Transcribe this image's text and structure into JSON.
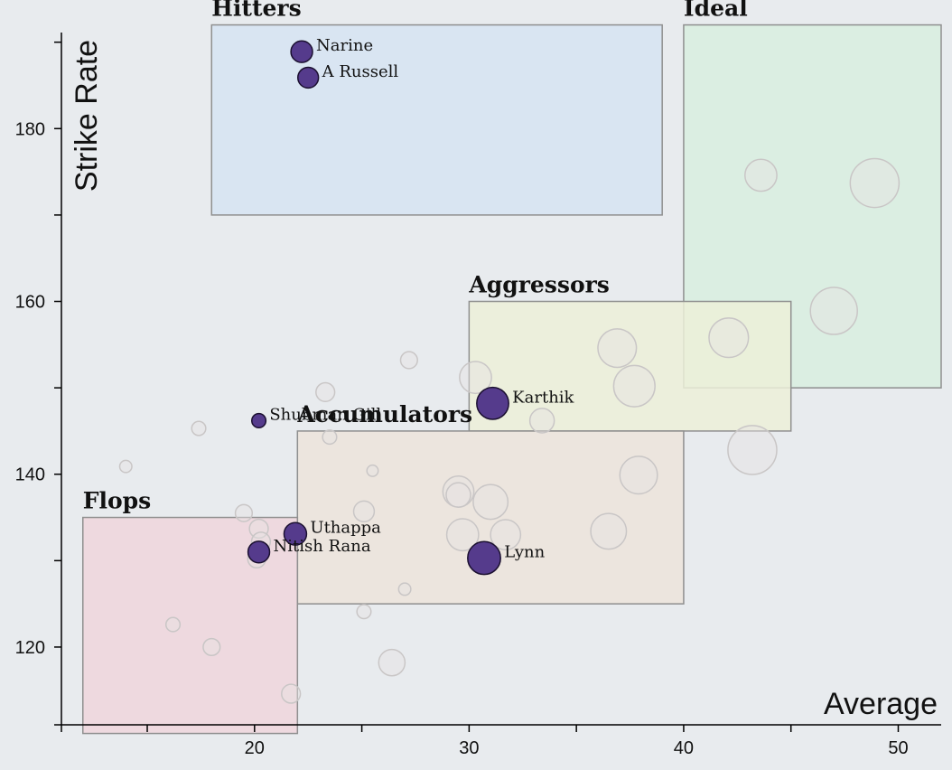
{
  "chart_data": {
    "type": "scatter",
    "xlabel": "Average",
    "ylabel": "Strike Rate",
    "xlim": [
      11,
      52
    ],
    "ylim": [
      111,
      193
    ],
    "x_ticks": [
      {
        "value": 15,
        "label": ""
      },
      {
        "value": 20,
        "label": "20"
      },
      {
        "value": 25,
        "label": ""
      },
      {
        "value": 30,
        "label": "30"
      },
      {
        "value": 35,
        "label": ""
      },
      {
        "value": 40,
        "label": "40"
      },
      {
        "value": 45,
        "label": ""
      },
      {
        "value": 50,
        "label": "50"
      }
    ],
    "y_ticks": [
      {
        "value": 120,
        "label": "120"
      },
      {
        "value": 130,
        "label": ""
      },
      {
        "value": 140,
        "label": "140"
      },
      {
        "value": 150,
        "label": ""
      },
      {
        "value": 160,
        "label": "160"
      },
      {
        "value": 170,
        "label": ""
      },
      {
        "value": 180,
        "label": "180"
      },
      {
        "value": 190,
        "label": ""
      }
    ],
    "zones": [
      {
        "label": "Hitters",
        "x0": 18,
        "x1": 39,
        "y0": 170,
        "y1": 192,
        "color": "#d6e4f2"
      },
      {
        "label": "Ideal",
        "x0": 40,
        "x1": 52,
        "y0": 150,
        "y1": 192,
        "color": "#d8efdf"
      },
      {
        "label": "Aggressors",
        "x0": 30,
        "x1": 45,
        "y0": 145,
        "y1": 160,
        "color": "#ecf0d8"
      },
      {
        "label": "Accumulators",
        "x0": 22,
        "x1": 40,
        "y0": 125,
        "y1": 145,
        "color": "#ece4db"
      },
      {
        "label": "Flops",
        "x0": 12,
        "x1": 22,
        "y0": 110,
        "y1": 135,
        "color": "#efd6dc"
      }
    ],
    "highlighted": [
      {
        "name": "Narine",
        "x": 22.2,
        "y": 188.9,
        "size": 2.3
      },
      {
        "name": "A Russell",
        "x": 22.5,
        "y": 185.9,
        "size": 2.2
      },
      {
        "name": "Karthik",
        "x": 31.1,
        "y": 148.2,
        "size": 3.4
      },
      {
        "name": "Shubman Gill",
        "x": 20.2,
        "y": 146.2,
        "size": 1.5
      },
      {
        "name": "Uthappa",
        "x": 21.9,
        "y": 133.1,
        "size": 2.4
      },
      {
        "name": "Nitish Rana",
        "x": 20.2,
        "y": 131.0,
        "size": 2.3
      },
      {
        "name": "Lynn",
        "x": 30.7,
        "y": 130.3,
        "size": 3.5
      }
    ],
    "others": [
      {
        "x": 43.6,
        "y": 174.6,
        "size": 3.4
      },
      {
        "x": 48.9,
        "y": 173.7,
        "size": 5.2
      },
      {
        "x": 47.0,
        "y": 158.9,
        "size": 5.0
      },
      {
        "x": 42.1,
        "y": 155.8,
        "size": 4.2
      },
      {
        "x": 36.9,
        "y": 154.6,
        "size": 4.1
      },
      {
        "x": 37.7,
        "y": 150.2,
        "size": 4.4
      },
      {
        "x": 43.2,
        "y": 142.8,
        "size": 5.2
      },
      {
        "x": 33.4,
        "y": 146.2,
        "size": 2.6
      },
      {
        "x": 30.3,
        "y": 151.2,
        "size": 3.4
      },
      {
        "x": 27.2,
        "y": 153.2,
        "size": 1.8
      },
      {
        "x": 23.3,
        "y": 149.5,
        "size": 2.0
      },
      {
        "x": 23.5,
        "y": 144.3,
        "size": 1.5
      },
      {
        "x": 17.4,
        "y": 145.3,
        "size": 1.5
      },
      {
        "x": 14.0,
        "y": 140.9,
        "size": 1.3
      },
      {
        "x": 25.5,
        "y": 140.4,
        "size": 1.2
      },
      {
        "x": 29.5,
        "y": 138.0,
        "size": 3.3
      },
      {
        "x": 29.5,
        "y": 137.6,
        "size": 2.6
      },
      {
        "x": 31.0,
        "y": 136.8,
        "size": 3.7
      },
      {
        "x": 37.9,
        "y": 139.9,
        "size": 4.0
      },
      {
        "x": 36.5,
        "y": 133.4,
        "size": 3.8
      },
      {
        "x": 31.7,
        "y": 133.0,
        "size": 3.2
      },
      {
        "x": 29.7,
        "y": 133.0,
        "size": 3.4
      },
      {
        "x": 25.1,
        "y": 135.7,
        "size": 2.2
      },
      {
        "x": 19.5,
        "y": 135.5,
        "size": 1.8
      },
      {
        "x": 20.2,
        "y": 133.7,
        "size": 2.0
      },
      {
        "x": 20.3,
        "y": 132.2,
        "size": 2.0
      },
      {
        "x": 20.1,
        "y": 130.2,
        "size": 1.9
      },
      {
        "x": 27.0,
        "y": 126.7,
        "size": 1.3
      },
      {
        "x": 25.1,
        "y": 124.1,
        "size": 1.5
      },
      {
        "x": 16.2,
        "y": 122.6,
        "size": 1.5
      },
      {
        "x": 18.0,
        "y": 120.0,
        "size": 1.8
      },
      {
        "x": 26.4,
        "y": 118.2,
        "size": 2.8
      },
      {
        "x": 21.7,
        "y": 114.6,
        "size": 2.0
      }
    ],
    "colors": {
      "highlight_fill": "#553b8c",
      "highlight_stroke": "#1b1030",
      "other_fill": "#e6e3e3",
      "other_stroke": "#c9c6c6",
      "zone_stroke": "#8f8f8f",
      "axis": "#000000"
    }
  }
}
